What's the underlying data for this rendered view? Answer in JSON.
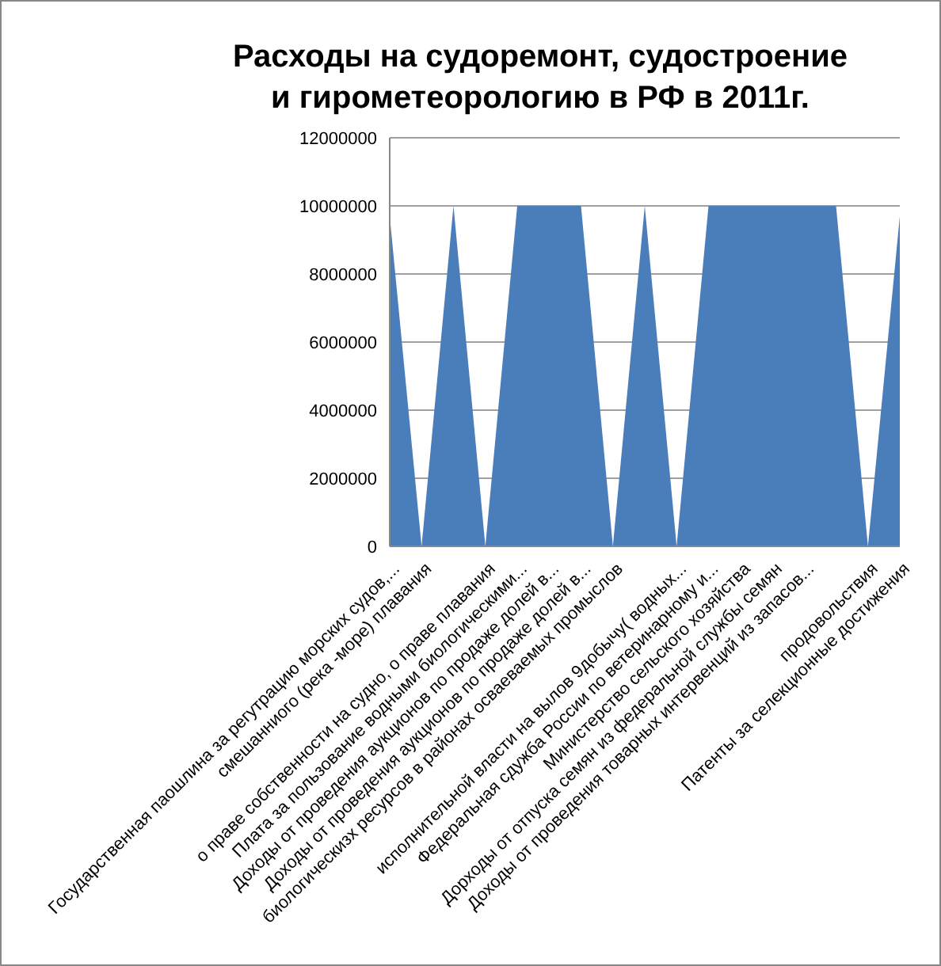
{
  "chart_data": {
    "type": "area",
    "title": "Расходы на судоремонт, судостроение\nи гирометеорологию в РФ в 2011г.",
    "categories": [
      "Государственная паошлина за регутрацию морских судов,...",
      "смешанниого (река -море) плавания",
      null,
      "о праве собственности  на судно, о праве плавания",
      "Плата за пользование водными биологическими...",
      "Доходы от проведения аукционов по продаже долей в...",
      "Доходы от проведения аукционов по продаже долей в...",
      "биологическизх ресурсов в районах осваеваемых промыслов",
      null,
      "исполнительной власти на  вылов 9добычу( водных...",
      "Федеральная сдужба России по ветеринарному и...",
      "Министерство сельского хозяйства",
      "Дорходы от отпуска семян из федеральной службы семян",
      "Доходы от проведения товарных интервенций  из запасов...",
      null,
      "продовольствия",
      "Патенты за селекционные достижения"
    ],
    "values": [
      9700000,
      0,
      10000000,
      0,
      10000000,
      10000000,
      10000000,
      0,
      10000000,
      0,
      10000000,
      10000000,
      10000000,
      10000000,
      10000000,
      0,
      9700000
    ],
    "color": "#4a7ebb",
    "ylim": [
      0,
      12000000
    ],
    "yticks": [
      0,
      2000000,
      4000000,
      6000000,
      8000000,
      10000000,
      12000000
    ],
    "grid": "y"
  }
}
